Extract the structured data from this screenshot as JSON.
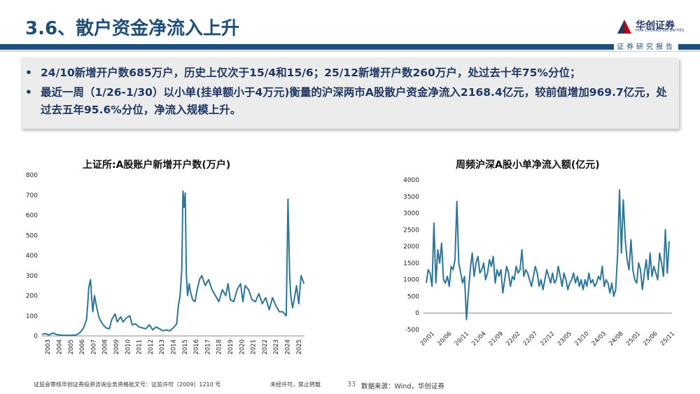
{
  "header": {
    "title": "3.6、散户资金净流入上升",
    "logo_text": "华创证券",
    "logo_sub": "HUA CHUANG SECURITIES",
    "tagline": "证券研究报告"
  },
  "summary": {
    "bullets": [
      "24/10新增开户数685万户，历史上仅次于15/4和15/6；25/12新增开户数260万户，处过去十年75%分位；",
      "最近一周（1/26-1/30）以小单(挂单额小于4万元)衡量的沪深两市A股散户资金净流入2168.4亿元，较前值增加969.7亿元，处过去五年95.6%分位，净流入规模上升。"
    ]
  },
  "chart_data": [
    {
      "type": "line",
      "title": "上证所:A股账户新增开户数(万户)",
      "ylim": [
        0,
        800
      ],
      "yticks": [
        0,
        100,
        200,
        300,
        400,
        500,
        600,
        700,
        800
      ],
      "xlim": [
        2003,
        2026
      ],
      "xticks": [
        "2003",
        "2004",
        "2005",
        "2006",
        "2007",
        "2008",
        "2009",
        "2010",
        "2011",
        "2012",
        "2013",
        "2014",
        "2015",
        "2016",
        "2017",
        "2018",
        "2019",
        "2020",
        "2021",
        "2022",
        "2023",
        "2024",
        "2025"
      ],
      "color": "#2e7596",
      "x": [
        2003.0,
        2003.3,
        2003.6,
        2004.0,
        2004.2,
        2004.5,
        2005.0,
        2005.5,
        2006.0,
        2006.3,
        2006.6,
        2006.9,
        2007.0,
        2007.1,
        2007.25,
        2007.35,
        2007.45,
        2007.6,
        2007.8,
        2008.0,
        2008.3,
        2008.6,
        2008.9,
        2009.1,
        2009.4,
        2009.6,
        2009.9,
        2010.1,
        2010.4,
        2010.7,
        2010.9,
        2011.2,
        2011.5,
        2011.8,
        2012.1,
        2012.4,
        2012.7,
        2013.0,
        2013.3,
        2013.6,
        2013.9,
        2014.2,
        2014.5,
        2014.8,
        2014.95,
        2015.1,
        2015.25,
        2015.35,
        2015.45,
        2015.55,
        2015.65,
        2015.75,
        2015.9,
        2016.0,
        2016.2,
        2016.4,
        2016.6,
        2016.8,
        2017.0,
        2017.3,
        2017.6,
        2017.9,
        2018.2,
        2018.5,
        2018.8,
        2019.1,
        2019.3,
        2019.5,
        2019.8,
        2020.1,
        2020.4,
        2020.6,
        2020.8,
        2021.1,
        2021.4,
        2021.7,
        2022.0,
        2022.3,
        2022.6,
        2022.9,
        2023.2,
        2023.5,
        2023.8,
        2024.1,
        2024.4,
        2024.55,
        2024.7,
        2024.8,
        2024.95,
        2025.1,
        2025.3,
        2025.5,
        2025.7,
        2025.95
      ],
      "values": [
        8,
        12,
        5,
        15,
        8,
        5,
        3,
        3,
        5,
        15,
        35,
        80,
        150,
        240,
        280,
        190,
        120,
        200,
        140,
        90,
        60,
        40,
        35,
        80,
        110,
        70,
        95,
        70,
        90,
        100,
        55,
        60,
        45,
        40,
        35,
        55,
        30,
        45,
        35,
        25,
        30,
        25,
        40,
        60,
        150,
        200,
        330,
        720,
        640,
        710,
        300,
        200,
        260,
        220,
        180,
        170,
        230,
        280,
        300,
        250,
        280,
        230,
        200,
        170,
        230,
        200,
        260,
        180,
        170,
        230,
        260,
        170,
        250,
        230,
        180,
        170,
        210,
        160,
        190,
        130,
        190,
        150,
        120,
        120,
        100,
        680,
        300,
        200,
        140,
        180,
        250,
        160,
        300,
        260
      ]
    },
    {
      "type": "line",
      "title": "周频沪深A股小单净流入额(亿元)",
      "ylim": [
        -500,
        4000
      ],
      "yticks": [
        -500,
        0,
        500,
        1000,
        1500,
        2000,
        2500,
        3000,
        3500,
        4000
      ],
      "xticks": [
        "20/01",
        "20/06",
        "20/11",
        "21/04",
        "21/09",
        "22/02",
        "22/07",
        "22/12",
        "23/05",
        "23/10",
        "24/03",
        "24/08",
        "25/01",
        "25/06",
        "25/11"
      ],
      "color": "#2e7596",
      "values": [
        900,
        1300,
        1200,
        800,
        2700,
        900,
        1900,
        1500,
        2100,
        1000,
        900,
        1100,
        800,
        1400,
        1300,
        1600,
        3350,
        1500,
        1200,
        900,
        1100,
        -200,
        600,
        1300,
        1800,
        1100,
        1500,
        1700,
        1200,
        1300,
        1500,
        1000,
        1200,
        1600,
        1400,
        1700,
        900,
        1300,
        1100,
        1300,
        600,
        1000,
        1400,
        1200,
        800,
        1100,
        1000,
        1400,
        1200,
        1300,
        1900,
        1100,
        1300,
        1200,
        1000,
        800,
        1100,
        1400,
        1200,
        800,
        1000,
        700,
        1000,
        1300,
        1100,
        900,
        1200,
        900,
        1000,
        1400,
        1100,
        800,
        1200,
        1000,
        700,
        900,
        1000,
        1200,
        900,
        1100,
        800,
        1000,
        700,
        1000,
        800,
        1200,
        900,
        1000,
        800,
        900,
        1100,
        1000,
        1400,
        800,
        1000,
        900,
        600,
        900,
        500,
        700,
        1700,
        3700,
        1800,
        3400,
        2200,
        1600,
        1300,
        2200,
        1300,
        1000,
        900,
        1500,
        1300,
        700,
        1200,
        1600,
        1000,
        1800,
        1100,
        1400,
        1200,
        1000,
        1800,
        1500,
        1100,
        2500,
        1200,
        2160
      ]
    }
  ],
  "footer": {
    "license": "证监会审核华创证券投资咨询业务资格批文号：证监许可（2009）1210 号",
    "notice": "未经许可，禁止转载",
    "page": "33",
    "source": "数据来源：Wind，华创证券"
  }
}
